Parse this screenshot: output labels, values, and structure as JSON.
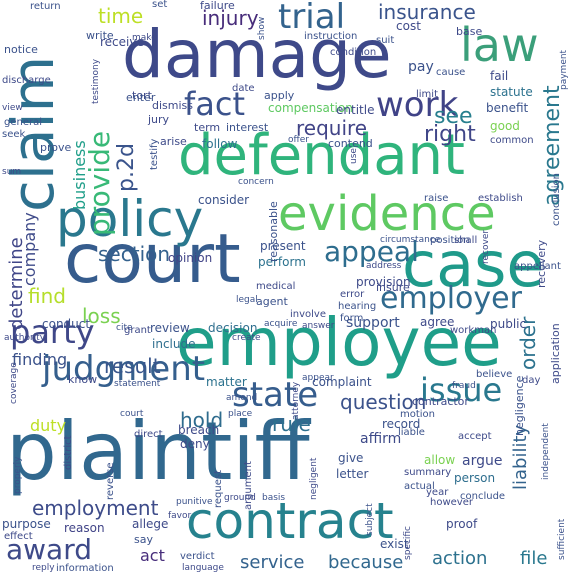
{
  "words": [
    "plaintiff",
    "court",
    "employee",
    "damage",
    "defendant",
    "case",
    "policy",
    "evidence",
    "contract",
    "claim",
    "law",
    "trial",
    "fact",
    "state",
    "party",
    "judgment",
    "employer",
    "issue",
    "work",
    "provide",
    "insurance",
    "require",
    "see",
    "right",
    "appeal",
    "section",
    "award",
    "agreement",
    "time",
    "injury",
    "loss",
    "question",
    "find",
    "action",
    "service",
    "because",
    "rule",
    "hold",
    "result",
    "employment",
    "determine",
    "business",
    "company",
    "order",
    "liability",
    "p.2d",
    "file",
    "duty",
    "finding",
    "act",
    "conduct",
    "decision",
    "opinion",
    "present",
    "perform",
    "support",
    "agree",
    "review",
    "include",
    "matter",
    "deny",
    "complaint",
    "reason",
    "give",
    "argue",
    "allow",
    "person",
    "record",
    "public",
    "consider",
    "follow",
    "compensation",
    "entitle",
    "pay",
    "cost",
    "benefit",
    "statute",
    "fail",
    "good",
    "interest",
    "term",
    "jury",
    "apply",
    "tort",
    "receive",
    "write",
    "set",
    "failure",
    "suit",
    "base",
    "return",
    "notice",
    "discharge",
    "cause",
    "date",
    "enter",
    "dismiss",
    "testify",
    "limit",
    "instruction",
    "condition",
    "contend",
    "establish",
    "raise",
    "recovery",
    "reasonable",
    "provision",
    "appellant",
    "medical",
    "agent",
    "error",
    "hearing",
    "involve",
    "form",
    "insure",
    "acquire",
    "address",
    "position",
    "shall",
    "circumstance",
    "common",
    "payment",
    "sum",
    "seek",
    "view",
    "prove",
    "effect",
    "purpose",
    "reply",
    "information",
    "language",
    "verdict",
    "favor",
    "say",
    "allege",
    "exist",
    "proof",
    "sufficient",
    "however",
    "conclude",
    "year",
    "actual",
    "summary",
    "letter",
    "argument",
    "request",
    "breach",
    "place",
    "district",
    "reverse",
    "direct",
    "court",
    "coverage",
    "properly",
    "accept",
    "motion",
    "affirm",
    "liable",
    "contractor",
    "fraud",
    "day",
    "believe",
    "application",
    "conclusion",
    "testimony",
    "show",
    "make",
    "statement",
    "authority",
    "cite",
    "grant",
    "legal",
    "answer",
    "appear",
    "know",
    "concern",
    "recover",
    "punitive",
    "ground",
    "basis",
    "negligent",
    "negligence",
    "attorney",
    "independent",
    "workman",
    "general",
    "arise",
    "offer",
    "use",
    "subject",
    "specific",
    "amend",
    "create"
  ]
}
